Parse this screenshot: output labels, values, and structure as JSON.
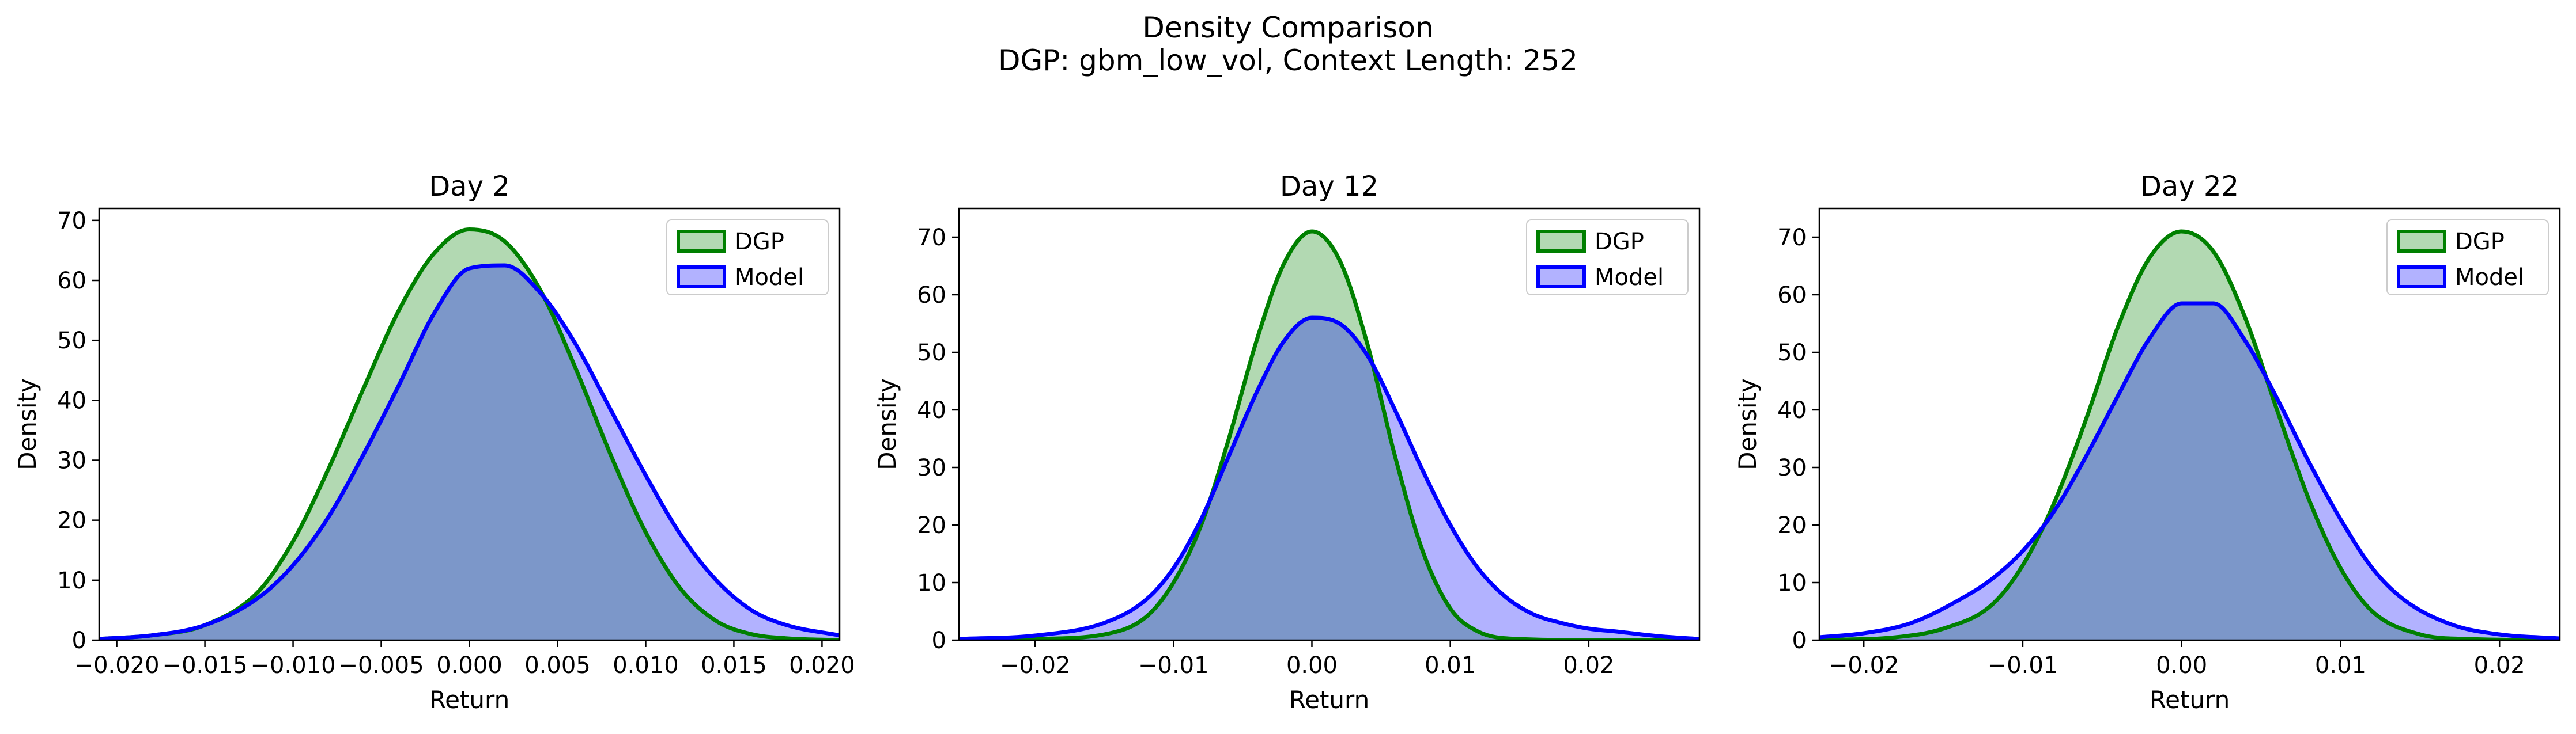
{
  "suptitle": {
    "line1": "Density Comparison",
    "line2": "DGP: gbm_low_vol, Context Length: 252"
  },
  "colors": {
    "dgp": "#008000",
    "model": "#0000ff",
    "dgp_fill": "#008000",
    "model_fill": "#0000ff"
  },
  "chart_data": [
    {
      "type": "area",
      "title": "Day 2",
      "xlabel": "Return",
      "ylabel": "Density",
      "xlim": [
        -0.021,
        0.021
      ],
      "ylim": [
        0,
        72
      ],
      "xticks": [
        -0.02,
        -0.015,
        -0.01,
        -0.005,
        0.0,
        0.005,
        0.01,
        0.015,
        0.02
      ],
      "xtick_labels": [
        "−0.020",
        "−0.015",
        "−0.010",
        "−0.005",
        "0.000",
        "0.005",
        "0.010",
        "0.015",
        "0.020"
      ],
      "yticks": [
        0,
        10,
        20,
        30,
        40,
        50,
        60,
        70
      ],
      "ytick_labels": [
        "0",
        "10",
        "20",
        "30",
        "40",
        "50",
        "60",
        "70"
      ],
      "legend": {
        "position": "upper right",
        "entries": [
          "DGP",
          "Model"
        ]
      },
      "series": [
        {
          "name": "DGP",
          "x": [
            -0.021,
            -0.018,
            -0.015,
            -0.012,
            -0.01,
            -0.008,
            -0.006,
            -0.004,
            -0.002,
            0.0,
            0.002,
            0.004,
            0.006,
            0.008,
            0.01,
            0.012,
            0.014,
            0.016,
            0.018,
            0.021
          ],
          "y": [
            0.2,
            0.8,
            2.5,
            8.0,
            16.5,
            28.5,
            42.0,
            55.0,
            64.5,
            68.5,
            66.5,
            58.5,
            45.5,
            31.0,
            18.0,
            8.5,
            3.2,
            1.0,
            0.3,
            0.0
          ]
        },
        {
          "name": "Model",
          "x": [
            -0.021,
            -0.018,
            -0.015,
            -0.012,
            -0.01,
            -0.008,
            -0.006,
            -0.004,
            -0.002,
            0.0,
            0.002,
            0.004,
            0.006,
            0.008,
            0.01,
            0.012,
            0.014,
            0.016,
            0.018,
            0.021
          ],
          "y": [
            0.2,
            0.8,
            2.5,
            7.0,
            12.5,
            20.5,
            31.0,
            42.5,
            54.5,
            62.0,
            62.5,
            58.0,
            49.5,
            38.5,
            27.5,
            17.5,
            10.0,
            5.0,
            2.5,
            0.8
          ]
        }
      ]
    },
    {
      "type": "area",
      "title": "Day 12",
      "xlabel": "Return",
      "ylabel": "Density",
      "xlim": [
        -0.0255,
        0.028
      ],
      "ylim": [
        0,
        75
      ],
      "xticks": [
        -0.02,
        -0.01,
        0.0,
        0.01,
        0.02
      ],
      "xtick_labels": [
        "−0.02",
        "−0.01",
        "0.00",
        "0.01",
        "0.02"
      ],
      "yticks": [
        0,
        10,
        20,
        30,
        40,
        50,
        60,
        70
      ],
      "ytick_labels": [
        "0",
        "10",
        "20",
        "30",
        "40",
        "50",
        "60",
        "70"
      ],
      "legend": {
        "position": "upper right",
        "entries": [
          "DGP",
          "Model"
        ]
      },
      "series": [
        {
          "name": "DGP",
          "x": [
            -0.0255,
            -0.02,
            -0.015,
            -0.012,
            -0.01,
            -0.008,
            -0.006,
            -0.004,
            -0.002,
            0.0,
            0.002,
            0.004,
            0.006,
            0.008,
            0.01,
            0.012,
            0.015,
            0.02,
            0.028
          ],
          "y": [
            0.0,
            0.2,
            1.0,
            4.0,
            10.0,
            20.0,
            35.0,
            52.0,
            65.5,
            71.0,
            66.0,
            51.5,
            32.0,
            15.5,
            5.5,
            1.5,
            0.2,
            0.0,
            0.0
          ]
        },
        {
          "name": "Model",
          "x": [
            -0.0255,
            -0.02,
            -0.015,
            -0.012,
            -0.01,
            -0.008,
            -0.006,
            -0.004,
            -0.002,
            0.0,
            0.002,
            0.004,
            0.006,
            0.008,
            0.01,
            0.012,
            0.014,
            0.016,
            0.018,
            0.02,
            0.022,
            0.025,
            0.028
          ],
          "y": [
            0.2,
            0.8,
            3.0,
            7.0,
            12.5,
            21.0,
            32.0,
            43.0,
            52.0,
            56.0,
            55.0,
            49.5,
            40.0,
            29.5,
            20.0,
            12.5,
            7.5,
            4.5,
            3.0,
            2.0,
            1.5,
            0.7,
            0.2
          ]
        }
      ]
    },
    {
      "type": "area",
      "title": "Day 22",
      "xlabel": "Return",
      "ylabel": "Density",
      "xlim": [
        -0.0228,
        0.0238
      ],
      "ylim": [
        0,
        75
      ],
      "xticks": [
        -0.02,
        -0.01,
        0.0,
        0.01,
        0.02
      ],
      "xtick_labels": [
        "−0.02",
        "−0.01",
        "0.00",
        "0.01",
        "0.02"
      ],
      "yticks": [
        0,
        10,
        20,
        30,
        40,
        50,
        60,
        70
      ],
      "ytick_labels": [
        "0",
        "10",
        "20",
        "30",
        "40",
        "50",
        "60",
        "70"
      ],
      "legend": {
        "position": "upper right",
        "entries": [
          "DGP",
          "Model"
        ]
      },
      "series": [
        {
          "name": "DGP",
          "x": [
            -0.0228,
            -0.018,
            -0.015,
            -0.012,
            -0.01,
            -0.008,
            -0.006,
            -0.004,
            -0.002,
            0.0,
            0.002,
            0.004,
            0.006,
            0.008,
            0.01,
            0.012,
            0.015,
            0.018,
            0.0238
          ],
          "y": [
            0.0,
            0.5,
            2.0,
            6.0,
            13.0,
            24.0,
            38.5,
            54.5,
            66.5,
            71.0,
            67.5,
            56.0,
            40.0,
            24.5,
            12.5,
            5.0,
            1.0,
            0.2,
            0.0
          ]
        },
        {
          "name": "Model",
          "x": [
            -0.0228,
            -0.02,
            -0.017,
            -0.014,
            -0.012,
            -0.01,
            -0.008,
            -0.006,
            -0.004,
            -0.002,
            0.0,
            0.002,
            0.004,
            0.006,
            0.008,
            0.01,
            0.012,
            0.014,
            0.017,
            0.02,
            0.0238
          ],
          "y": [
            0.5,
            1.2,
            3.0,
            7.0,
            10.5,
            15.5,
            22.5,
            32.0,
            42.5,
            52.5,
            58.5,
            58.5,
            52.0,
            42.0,
            31.0,
            21.0,
            12.5,
            7.0,
            2.7,
            1.0,
            0.3
          ]
        }
      ]
    }
  ]
}
